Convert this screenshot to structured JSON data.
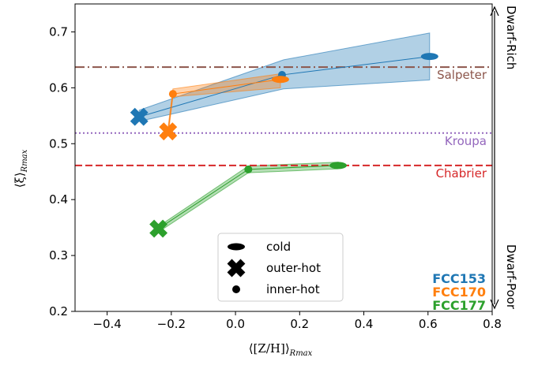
{
  "chart_data": {
    "type": "scatter",
    "xlim": [
      -0.5,
      0.8
    ],
    "ylim": [
      0.2,
      0.75
    ],
    "x_ticks": [
      -0.4,
      -0.2,
      0.0,
      0.2,
      0.4,
      0.6,
      0.8
    ],
    "x_tick_labels": [
      "−0.4",
      "−0.2",
      "0.0",
      "0.2",
      "0.4",
      "0.6",
      "0.8"
    ],
    "y_ticks": [
      0.2,
      0.3,
      0.4,
      0.5,
      0.6,
      0.7
    ],
    "y_tick_labels": [
      "0.2",
      "0.3",
      "0.4",
      "0.5",
      "0.6",
      "0.7"
    ],
    "xlabel": "⟨[Z/H]⟩",
    "xlabel_sub": "Rmax",
    "ylabel": "⟨ξ⟩",
    "ylabel_sub": "Rmax",
    "grid": false,
    "reference_lines": [
      {
        "name": "Salpeter",
        "y": 0.637,
        "color": "#8c564b",
        "style": "dashdot"
      },
      {
        "name": "Kroupa",
        "y": 0.519,
        "color": "#9467bd",
        "style": "dotted"
      },
      {
        "name": "Chabrier",
        "y": 0.461,
        "color": "#d62728",
        "style": "dashed"
      }
    ],
    "series": [
      {
        "name": "FCC153",
        "color": "#1f77b4",
        "points": [
          {
            "component": "outer-hot",
            "x": -0.3,
            "y": 0.548
          },
          {
            "component": "inner-hot",
            "x": 0.145,
            "y": 0.623
          },
          {
            "component": "cold",
            "x": 0.605,
            "y": 0.656
          }
        ],
        "band_upper": [
          [
            -0.3,
            0.56
          ],
          [
            0.15,
            0.65
          ],
          [
            0.605,
            0.698
          ]
        ],
        "band_lower": [
          [
            -0.3,
            0.54
          ],
          [
            0.15,
            0.598
          ],
          [
            0.605,
            0.614
          ]
        ]
      },
      {
        "name": "FCC170",
        "color": "#ff7f0e",
        "points": [
          {
            "component": "outer-hot",
            "x": -0.21,
            "y": 0.522
          },
          {
            "component": "inner-hot",
            "x": -0.195,
            "y": 0.589
          },
          {
            "component": "cold",
            "x": 0.14,
            "y": 0.615
          }
        ],
        "band_upper": [
          [
            -0.21,
            0.53
          ],
          [
            -0.195,
            0.598
          ],
          [
            0.14,
            0.625
          ]
        ],
        "band_lower": [
          [
            -0.21,
            0.514
          ],
          [
            -0.195,
            0.584
          ],
          [
            0.14,
            0.6
          ]
        ]
      },
      {
        "name": "FCC177",
        "color": "#2ca02c",
        "points": [
          {
            "component": "outer-hot",
            "x": -0.24,
            "y": 0.348
          },
          {
            "component": "inner-hot",
            "x": 0.04,
            "y": 0.454
          },
          {
            "component": "cold",
            "x": 0.32,
            "y": 0.461
          }
        ],
        "band_upper": [
          [
            -0.24,
            0.352
          ],
          [
            0.04,
            0.46
          ],
          [
            0.32,
            0.467
          ]
        ],
        "band_lower": [
          [
            -0.24,
            0.342
          ],
          [
            0.04,
            0.448
          ],
          [
            0.32,
            0.455
          ]
        ]
      }
    ],
    "legend": {
      "placement": "lower-center",
      "entries": [
        {
          "marker": "ellipse",
          "label": "cold"
        },
        {
          "marker": "x",
          "label": "outer-hot"
        },
        {
          "marker": "dot",
          "label": "inner-hot"
        }
      ]
    },
    "side_labels": {
      "top": "Dwarf-Rich",
      "bottom": "Dwarf-Poor"
    }
  }
}
